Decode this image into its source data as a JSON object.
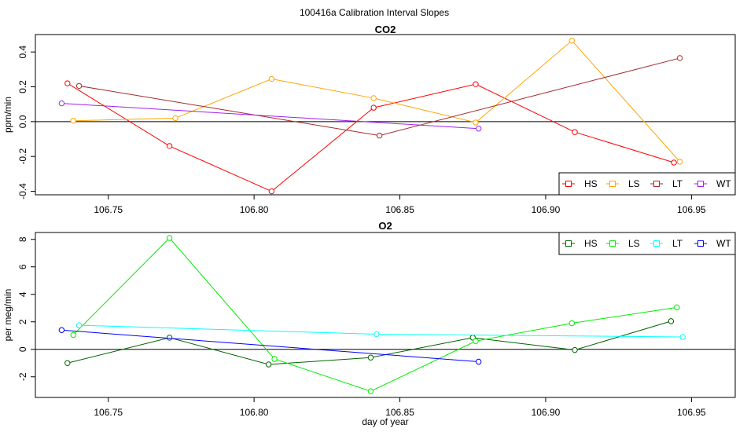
{
  "figure": {
    "title": "100416a   Calibration Interval Slopes"
  },
  "chart_data": [
    {
      "type": "line",
      "title": "CO2",
      "xlabel": "",
      "ylabel": "ppm/min",
      "xlim": [
        106.725,
        106.965
      ],
      "ylim": [
        -0.42,
        0.5
      ],
      "x_ticks": [
        "106.75",
        "106.80",
        "106.85",
        "106.90",
        "106.95"
      ],
      "y_ticks": [
        "-0.4",
        "-0.2",
        "0.0",
        "0.2",
        "0.4"
      ],
      "reference_line": 0,
      "legend_position": "bottom-right",
      "series": [
        {
          "name": "HS",
          "color": "#ff0000",
          "x": [
            106.736,
            106.771,
            106.806,
            106.841,
            106.876,
            106.91,
            106.944
          ],
          "y": [
            0.22,
            -0.14,
            -0.4,
            0.08,
            0.215,
            -0.06,
            -0.235
          ]
        },
        {
          "name": "LS",
          "color": "#ffa500",
          "x": [
            106.738,
            106.773,
            106.806,
            106.841,
            106.876,
            106.909,
            106.946
          ],
          "y": [
            0.005,
            0.02,
            0.245,
            0.135,
            -0.005,
            0.465,
            -0.23
          ]
        },
        {
          "name": "LT",
          "color": "#a52a2a",
          "x": [
            106.74,
            106.843,
            106.946
          ],
          "y": [
            0.205,
            -0.08,
            0.365
          ]
        },
        {
          "name": "WT",
          "color": "#a020f0",
          "x": [
            106.734,
            106.877
          ],
          "y": [
            0.105,
            -0.04
          ]
        }
      ]
    },
    {
      "type": "line",
      "title": "O2",
      "xlabel": "day of year",
      "ylabel": "per meg/min",
      "xlim": [
        106.725,
        106.965
      ],
      "ylim": [
        -3.5,
        8.5
      ],
      "x_ticks": [
        "106.75",
        "106.80",
        "106.85",
        "106.90",
        "106.95"
      ],
      "y_ticks": [
        "-2",
        "0",
        "2",
        "4",
        "6",
        "8"
      ],
      "reference_line": 0,
      "legend_position": "top-right",
      "series": [
        {
          "name": "HS",
          "color": "#006400",
          "x": [
            106.736,
            106.771,
            106.805,
            106.84,
            106.875,
            106.91,
            106.943
          ],
          "y": [
            -1.0,
            0.85,
            -1.1,
            -0.6,
            0.85,
            -0.05,
            2.05
          ]
        },
        {
          "name": "LS",
          "color": "#00ee00",
          "x": [
            106.738,
            106.771,
            106.807,
            106.84,
            106.876,
            106.909,
            106.945
          ],
          "y": [
            1.05,
            8.1,
            -0.7,
            -3.05,
            0.6,
            1.9,
            3.05
          ]
        },
        {
          "name": "LT",
          "color": "#00ffff",
          "x": [
            106.74,
            106.842,
            106.947
          ],
          "y": [
            1.75,
            1.1,
            0.9
          ]
        },
        {
          "name": "WT",
          "color": "#0000ff",
          "x": [
            106.734,
            106.877
          ],
          "y": [
            1.4,
            -0.9
          ]
        }
      ]
    }
  ]
}
